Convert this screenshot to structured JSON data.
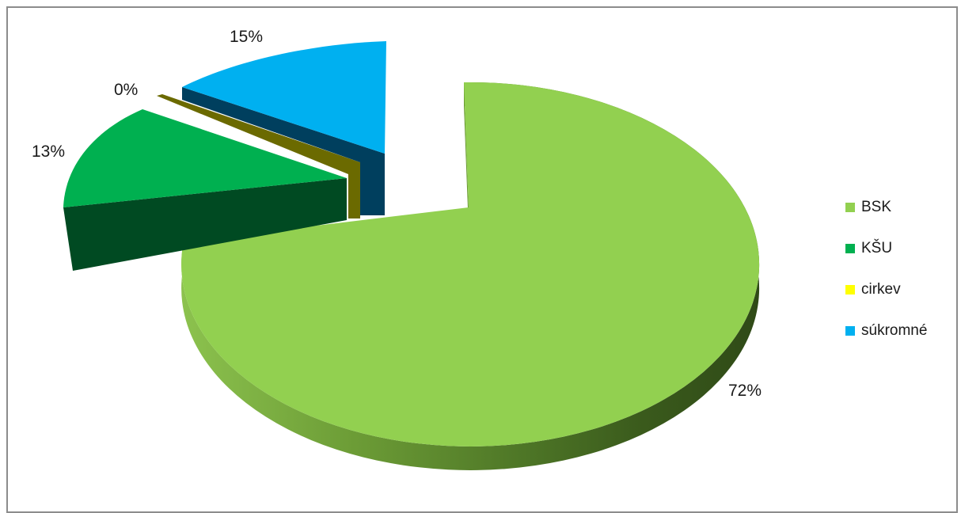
{
  "chart_data": {
    "type": "pie",
    "title": "",
    "is_3d": true,
    "exploded": true,
    "legend_position": "right",
    "slices": [
      {
        "name": "BSK",
        "value": 72,
        "label": "72%",
        "color": "#92d050"
      },
      {
        "name": "KŠU",
        "value": 13,
        "label": "13%",
        "color": "#00b050"
      },
      {
        "name": "cirkev",
        "value": 0,
        "label": "0%",
        "color": "#ffff00"
      },
      {
        "name": "súkromné",
        "value": 15,
        "label": "15%",
        "color": "#00b0f0"
      }
    ]
  }
}
